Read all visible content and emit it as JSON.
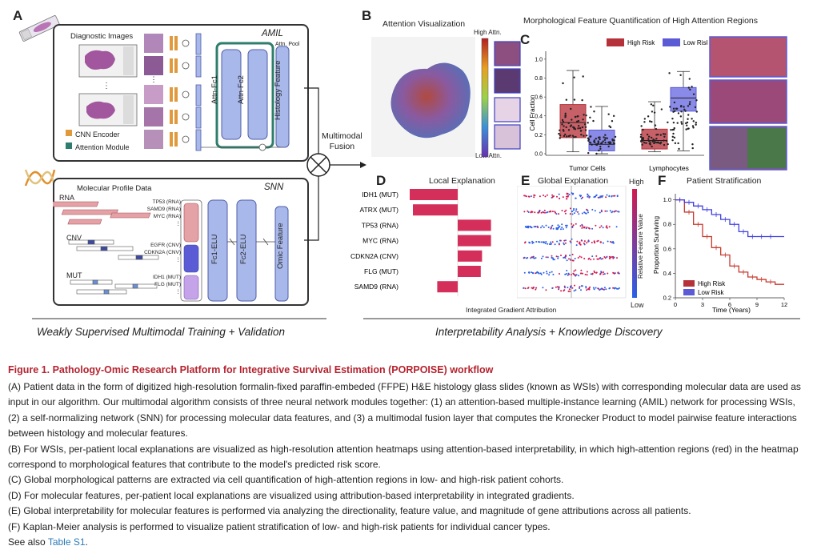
{
  "panels": {
    "a": "A",
    "b": "B",
    "c": "C",
    "d": "D",
    "e": "E",
    "f": "F"
  },
  "amil": {
    "box_title": "AMIL",
    "diagnostic_images": "Diagnostic Images",
    "attn_pool": "Attn. Pool",
    "attn_fc1": "Attn-Fc1",
    "attn_fc2": "Attn-Fc2",
    "histology_feature": "Histology Feature",
    "legend_cnn": "CNN Encoder",
    "legend_attn": "Attention Module",
    "ellipsis": "⋮"
  },
  "snn": {
    "box_title": "SNN",
    "molecular_profile": "Molecular Profile Data",
    "rna": "RNA",
    "cnv": "CNV",
    "mut": "MUT",
    "rna_genes": [
      "TP53 (RNA)",
      "SAMD9 (RNA)",
      "MYC (RNA)"
    ],
    "cnv_genes": [
      "EGFR (CNV)",
      "CDKN2A (CNV)"
    ],
    "mut_genes": [
      "IDH1 (MUT)",
      "FLG (MUT)"
    ],
    "fc1": "Fc1-ELU",
    "fc2": "Fc2-ELU",
    "omic_feature": "Omic Feature"
  },
  "fusion": {
    "label_line1": "Multimodal",
    "label_line2": "Fusion",
    "symbol": "⊗"
  },
  "section_labels": {
    "left": "Weakly Supervised Multimodal Training + Validation",
    "right": "Interpretability Analysis + Knowledge Discovery"
  },
  "panel_b": {
    "title": "Attention Visualization",
    "high": "High Attn.",
    "low": "Low Attn."
  },
  "panel_c": {
    "title": "Morphological Feature Quantification of High Attention Regions",
    "legend_high": "High Risk",
    "legend_low": "Low Risk",
    "colors": {
      "high": "#b5323a",
      "low": "#5b5bd6"
    }
  },
  "panel_d": {
    "title": "Local Explanation",
    "xlabel": "Integrated Gradient Attribution"
  },
  "panel_e": {
    "title": "Global Explanation",
    "high": "High",
    "low": "Low",
    "colorbar_label": "Relative Feature Value"
  },
  "panel_f": {
    "title": "Patient Stratification",
    "legend_high": "High Risk",
    "legend_low": "Low Risk"
  },
  "chart_data": [
    {
      "type": "box",
      "panel": "C",
      "categories": [
        "Tumor Cells",
        "Lymphocytes"
      ],
      "series": [
        {
          "name": "High Risk",
          "stats": [
            {
              "min": 0.02,
              "q1": 0.17,
              "median": 0.33,
              "q3": 0.52,
              "max": 0.88
            },
            {
              "min": 0.02,
              "q1": 0.05,
              "median": 0.14,
              "q3": 0.26,
              "max": 0.55
            }
          ]
        },
        {
          "name": "Low Risk",
          "stats": [
            {
              "min": 0.0,
              "q1": 0.03,
              "median": 0.1,
              "q3": 0.25,
              "max": 0.5
            },
            {
              "min": 0.03,
              "q1": 0.45,
              "median": 0.59,
              "q3": 0.7,
              "max": 0.87
            }
          ]
        }
      ],
      "ylabel": "Cell Fraction",
      "yticks": [
        "0.0",
        "0.2",
        "0.4",
        "0.6",
        "0.8",
        "1.0"
      ],
      "ylim": [
        0,
        1.05
      ]
    },
    {
      "type": "bar",
      "panel": "D",
      "categories": [
        "IDH1 (MUT)",
        "ATRX (MUT)",
        "TP53 (RNA)",
        "MYC (RNA)",
        "CDKN2A (CNV)",
        "FLG (MUT)",
        "SAMD9 (RNA)"
      ],
      "values": [
        -0.75,
        -0.7,
        0.52,
        0.52,
        0.38,
        0.36,
        -0.32
      ],
      "xlabel": "Integrated Gradient Attribution"
    },
    {
      "type": "scatter",
      "panel": "E",
      "categories": [
        "IDH1 (MUT)",
        "ATRX (MUT)",
        "TP53 (RNA)",
        "MYC (RNA)",
        "CDKN2A (CNV)",
        "FLG (MUT)",
        "SAMD9 (RNA)"
      ],
      "colorbar_label": "Relative Feature Value"
    },
    {
      "type": "line",
      "panel": "F",
      "xlabel": "Time (Years)",
      "ylabel": "Proportion Surviving",
      "xticks": [
        "0",
        "3",
        "6",
        "9",
        "12"
      ],
      "yticks": [
        "0.2",
        "0.4",
        "0.6",
        "0.8",
        "1.0"
      ],
      "xlim": [
        0,
        12
      ],
      "ylim": [
        0.2,
        1.05
      ],
      "series": [
        {
          "name": "High Risk",
          "x": [
            0,
            1,
            2,
            3,
            4,
            5,
            6,
            7,
            8,
            9,
            10,
            11
          ],
          "y": [
            1.0,
            0.9,
            0.8,
            0.7,
            0.61,
            0.55,
            0.46,
            0.41,
            0.37,
            0.35,
            0.33,
            0.31
          ]
        },
        {
          "name": "Low Risk",
          "x": [
            0,
            1,
            2,
            3,
            4,
            5,
            6,
            7,
            8,
            9,
            10,
            11
          ],
          "y": [
            1.0,
            0.98,
            0.95,
            0.92,
            0.88,
            0.84,
            0.8,
            0.74,
            0.7,
            0.7,
            0.7,
            0.7
          ]
        }
      ]
    }
  ],
  "caption": {
    "title": "Figure 1.  Pathology-Omic Research Platform for Integrative Survival Estimation (PORPOISE) workflow",
    "p1": "(A) Patient data in the form of digitized high-resolution formalin-fixed paraffin-embeded (FFPE) H&E histology glass slides (known as WSIs) with corresponding molecular data are used as input in our algorithm. Our multimodal algorithm consists of three neural network modules together: (1) an attention-based multiple-instance learning (AMIL) network for processing WSIs, (2) a self-normalizing network (SNN) for processing molecular data features, and (3) a multimodal fusion layer that computes the Kronecker Product to model pairwise feature interactions between histology and molecular features.",
    "p2": "(B) For WSIs, per-patient local explanations are visualized as high-resolution attention heatmaps using attention-based interpretability, in which high-attention regions (red) in the heatmap correspond to morphological features that contribute to the model's predicted risk score.",
    "p3": "(C) Global morphological patterns are extracted via cell quantification of high-attention regions in low- and high-risk patient cohorts.",
    "p4": "(D) For molecular features, per-patient local explanations are visualized using attribution-based interpretability in integrated gradients.",
    "p5": "(E) Global interpretability for molecular features is performed via analyzing the directionality, feature value, and magnitude of gene attributions across all patients.",
    "p6": "(F) Kaplan-Meier analysis is performed to visualize patient stratification of low- and high-risk patients for individual cancer types.",
    "see_also": "See also ",
    "table_link": "Table S1",
    "period": "."
  }
}
